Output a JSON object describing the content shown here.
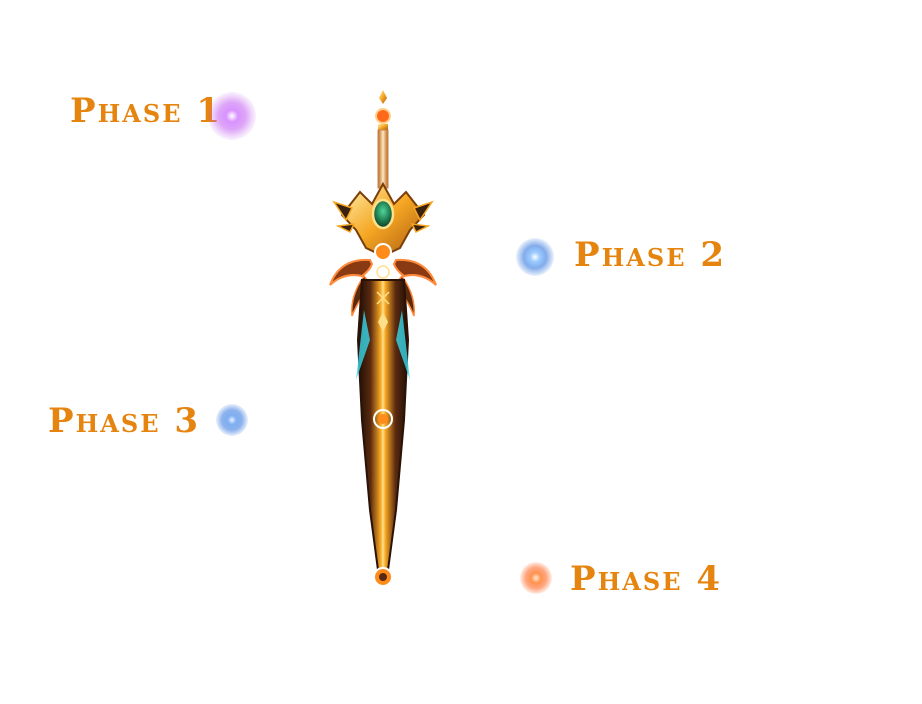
{
  "colors": {
    "label": "#e5840f",
    "orb_purple": "#c15bf0",
    "orb_blue": "#3f7fe0",
    "orb_orange": "#ff6a2a",
    "blade_dark": "#3a1d0e",
    "blade_gold": "#f5a623",
    "gem_green": "#1f7a4d",
    "accent_cyan": "#38d6e8"
  },
  "phases": [
    {
      "label": "Phase 1",
      "orb_color": "purple"
    },
    {
      "label": "Phase 2",
      "orb_color": "blue"
    },
    {
      "label": "Phase 3",
      "orb_color": "blue"
    },
    {
      "label": "Phase 4",
      "orb_color": "orange"
    }
  ],
  "sword": {
    "name_icon": "ornate-sword-icon"
  }
}
